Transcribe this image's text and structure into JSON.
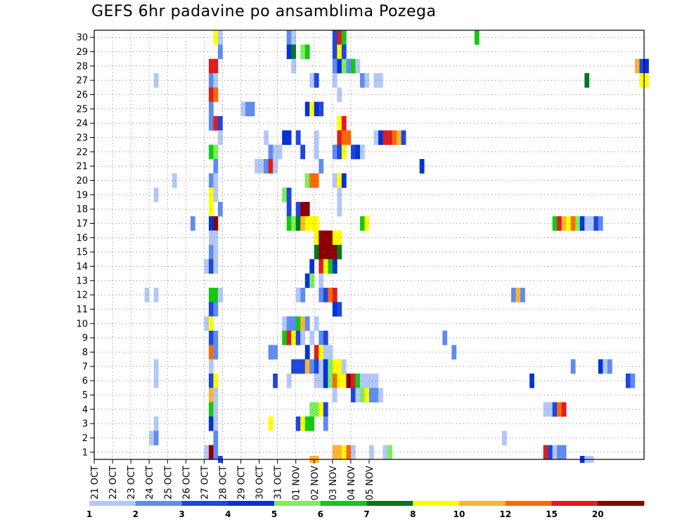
{
  "chart_data": {
    "type": "heatmap",
    "title": "GEFS 6hr padavine po ansamblima Pozega",
    "xlabel": "",
    "ylabel": "",
    "x_ticks": [
      "21 OCT",
      "22 OCT",
      "23 OCT",
      "24 OCT",
      "25 OCT",
      "26 OCT",
      "27 OCT",
      "28 OCT",
      "29 OCT",
      "30 OCT",
      "31 OCT",
      "01 NOV",
      "02 NOV",
      "03 NOV",
      "04 NOV",
      "05 NOV"
    ],
    "y_ticks": [
      "1",
      "2",
      "3",
      "4",
      "5",
      "6",
      "7",
      "8",
      "9",
      "10",
      "11",
      "12",
      "13",
      "14",
      "15",
      "16",
      "17",
      "18",
      "19",
      "20",
      "21",
      "22",
      "23",
      "24",
      "25",
      "26",
      "27",
      "28",
      "29",
      "30"
    ],
    "x_unit": "6-hour steps starting 21 OCT 00Z",
    "legend": {
      "labels": [
        "1",
        "2",
        "3",
        "4",
        "5",
        "6",
        "7",
        "8",
        "10",
        "12",
        "15",
        "20"
      ],
      "colors": [
        "#b4c8f8",
        "#5f8cf0",
        "#1e46e0",
        "#0032d8",
        "#7af05a",
        "#14c814",
        "#00781e",
        "#ffff00",
        "#ffb432",
        "#ff6a00",
        "#dc1e1e",
        "#8c0000"
      ]
    },
    "grid": true,
    "cells": [
      [
        30,
        [
          [
            26,
            8
          ],
          [
            27,
            1
          ],
          [
            42,
            2
          ],
          [
            43,
            1
          ],
          [
            52,
            3
          ],
          [
            53,
            11
          ],
          [
            54,
            6
          ],
          [
            83,
            6
          ]
        ]
      ],
      [
        29,
        [
          [
            27,
            2
          ],
          [
            42,
            4
          ],
          [
            43,
            7
          ],
          [
            45,
            5
          ],
          [
            46,
            6
          ],
          [
            52,
            3
          ],
          [
            53,
            8
          ],
          [
            54,
            3
          ]
        ]
      ],
      [
        28,
        [
          [
            25,
            11
          ],
          [
            26,
            11
          ],
          [
            43,
            1
          ],
          [
            52,
            2
          ],
          [
            53,
            4
          ],
          [
            54,
            5
          ],
          [
            55,
            2
          ],
          [
            56,
            6
          ],
          [
            57,
            1
          ],
          [
            118,
            9
          ],
          [
            119,
            3
          ],
          [
            120,
            4
          ]
        ]
      ],
      [
        27,
        [
          [
            13,
            1
          ],
          [
            25,
            2
          ],
          [
            26,
            1
          ],
          [
            47,
            1
          ],
          [
            48,
            3
          ],
          [
            52,
            1
          ],
          [
            58,
            2
          ],
          [
            59,
            1
          ],
          [
            61,
            1
          ],
          [
            62,
            1
          ],
          [
            107,
            7
          ],
          [
            119,
            8
          ],
          [
            120,
            8
          ]
        ]
      ],
      [
        26,
        [
          [
            25,
            11
          ],
          [
            26,
            10
          ],
          [
            53,
            1
          ]
        ]
      ],
      [
        25,
        [
          [
            25,
            2
          ],
          [
            32,
            1
          ],
          [
            33,
            2
          ],
          [
            34,
            2
          ],
          [
            46,
            4
          ],
          [
            47,
            8
          ],
          [
            48,
            4
          ],
          [
            49,
            3
          ]
        ]
      ],
      [
        24,
        [
          [
            25,
            2
          ],
          [
            26,
            11
          ],
          [
            27,
            3
          ],
          [
            53,
            8
          ],
          [
            54,
            11
          ]
        ]
      ],
      [
        23,
        [
          [
            27,
            1
          ],
          [
            37,
            1
          ],
          [
            41,
            4
          ],
          [
            42,
            4
          ],
          [
            44,
            3
          ],
          [
            48,
            1
          ],
          [
            53,
            11
          ],
          [
            54,
            10
          ],
          [
            55,
            10
          ],
          [
            61,
            1
          ],
          [
            62,
            4
          ],
          [
            63,
            11
          ],
          [
            64,
            11
          ],
          [
            65,
            10
          ],
          [
            66,
            9
          ],
          [
            67,
            3
          ]
        ]
      ],
      [
        22,
        [
          [
            25,
            6
          ],
          [
            26,
            5
          ],
          [
            38,
            2
          ],
          [
            39,
            1
          ],
          [
            40,
            1
          ],
          [
            45,
            3
          ],
          [
            48,
            1
          ],
          [
            52,
            2
          ],
          [
            53,
            3
          ],
          [
            54,
            8
          ],
          [
            56,
            3
          ],
          [
            57,
            4
          ],
          [
            58,
            1
          ]
        ]
      ],
      [
        21,
        [
          [
            26,
            2
          ],
          [
            35,
            1
          ],
          [
            36,
            1
          ],
          [
            37,
            2
          ],
          [
            38,
            11
          ],
          [
            39,
            1
          ],
          [
            49,
            2
          ],
          [
            71,
            4
          ]
        ]
      ],
      [
        20,
        [
          [
            17,
            1
          ],
          [
            25,
            2
          ],
          [
            26,
            1
          ],
          [
            46,
            5
          ],
          [
            47,
            10
          ],
          [
            48,
            10
          ],
          [
            52,
            1
          ],
          [
            53,
            8
          ],
          [
            54,
            4
          ]
        ]
      ],
      [
        19,
        [
          [
            13,
            1
          ],
          [
            25,
            8
          ],
          [
            26,
            1
          ],
          [
            41,
            5
          ],
          [
            42,
            3
          ],
          [
            53,
            1
          ]
        ]
      ],
      [
        18,
        [
          [
            25,
            8
          ],
          [
            27,
            2
          ],
          [
            42,
            3
          ],
          [
            44,
            3
          ],
          [
            45,
            12
          ],
          [
            46,
            12
          ],
          [
            53,
            1
          ]
        ]
      ],
      [
        17,
        [
          [
            21,
            2
          ],
          [
            25,
            4
          ],
          [
            26,
            12
          ],
          [
            42,
            6
          ],
          [
            43,
            5
          ],
          [
            44,
            7
          ],
          [
            45,
            9
          ],
          [
            46,
            8
          ],
          [
            47,
            8
          ],
          [
            48,
            8
          ],
          [
            58,
            6
          ],
          [
            59,
            8
          ],
          [
            100,
            6
          ],
          [
            101,
            11
          ],
          [
            102,
            9
          ],
          [
            103,
            8
          ],
          [
            104,
            10
          ],
          [
            105,
            5
          ],
          [
            106,
            4
          ],
          [
            107,
            1
          ],
          [
            108,
            1
          ],
          [
            109,
            3
          ],
          [
            110,
            2
          ]
        ]
      ],
      [
        16,
        [
          [
            25,
            1
          ],
          [
            26,
            1
          ],
          [
            48,
            8
          ],
          [
            49,
            12
          ],
          [
            50,
            12
          ],
          [
            51,
            12
          ],
          [
            52,
            8
          ],
          [
            53,
            8
          ]
        ]
      ],
      [
        15,
        [
          [
            25,
            2
          ],
          [
            26,
            1
          ],
          [
            48,
            7
          ],
          [
            49,
            12
          ],
          [
            50,
            12
          ],
          [
            51,
            12
          ],
          [
            52,
            12
          ],
          [
            53,
            7
          ]
        ]
      ],
      [
        14,
        [
          [
            24,
            1
          ],
          [
            25,
            3
          ],
          [
            26,
            1
          ],
          [
            47,
            4
          ],
          [
            49,
            11
          ],
          [
            50,
            8
          ],
          [
            51,
            6
          ],
          [
            52,
            4
          ]
        ]
      ],
      [
        13,
        [
          [
            46,
            4
          ],
          [
            47,
            5
          ],
          [
            49,
            1
          ]
        ]
      ],
      [
        12,
        [
          [
            11,
            1
          ],
          [
            13,
            1
          ],
          [
            25,
            6
          ],
          [
            26,
            6
          ],
          [
            27,
            1
          ],
          [
            44,
            1
          ],
          [
            45,
            2
          ],
          [
            49,
            2
          ],
          [
            50,
            3
          ],
          [
            51,
            10
          ],
          [
            52,
            11
          ],
          [
            91,
            2
          ],
          [
            92,
            9
          ],
          [
            93,
            2
          ]
        ]
      ],
      [
        11,
        [
          [
            25,
            3
          ],
          [
            26,
            2
          ],
          [
            52,
            4
          ],
          [
            53,
            3
          ]
        ]
      ],
      [
        10,
        [
          [
            24,
            1
          ],
          [
            25,
            8
          ],
          [
            41,
            1
          ],
          [
            42,
            2
          ],
          [
            43,
            2
          ],
          [
            44,
            6
          ],
          [
            45,
            9
          ],
          [
            46,
            2
          ],
          [
            48,
            1
          ]
        ]
      ],
      [
        9,
        [
          [
            25,
            3
          ],
          [
            26,
            2
          ],
          [
            41,
            6
          ],
          [
            42,
            11
          ],
          [
            43,
            8
          ],
          [
            44,
            3
          ],
          [
            45,
            1
          ],
          [
            47,
            1
          ],
          [
            49,
            2
          ],
          [
            50,
            3
          ],
          [
            76,
            2
          ]
        ]
      ],
      [
        8,
        [
          [
            25,
            10
          ],
          [
            26,
            2
          ],
          [
            38,
            2
          ],
          [
            39,
            2
          ],
          [
            46,
            4
          ],
          [
            48,
            11
          ],
          [
            49,
            8
          ],
          [
            50,
            1
          ],
          [
            51,
            1
          ],
          [
            78,
            2
          ]
        ]
      ],
      [
        7,
        [
          [
            13,
            1
          ],
          [
            25,
            1
          ],
          [
            43,
            3
          ],
          [
            44,
            3
          ],
          [
            45,
            3
          ],
          [
            46,
            9
          ],
          [
            47,
            2
          ],
          [
            48,
            3
          ],
          [
            49,
            1
          ],
          [
            50,
            4
          ],
          [
            51,
            5
          ],
          [
            52,
            8
          ],
          [
            53,
            8
          ],
          [
            54,
            1
          ],
          [
            104,
            2
          ],
          [
            110,
            4
          ],
          [
            111,
            1
          ],
          [
            112,
            2
          ]
        ]
      ],
      [
        6,
        [
          [
            13,
            1
          ],
          [
            25,
            3
          ],
          [
            26,
            8
          ],
          [
            39,
            3
          ],
          [
            42,
            1
          ],
          [
            48,
            1
          ],
          [
            49,
            1
          ],
          [
            50,
            4
          ],
          [
            51,
            5
          ],
          [
            52,
            10
          ],
          [
            53,
            8
          ],
          [
            54,
            8
          ],
          [
            55,
            12
          ],
          [
            56,
            11
          ],
          [
            57,
            6
          ],
          [
            58,
            1
          ],
          [
            59,
            1
          ],
          [
            60,
            1
          ],
          [
            61,
            1
          ],
          [
            95,
            4
          ],
          [
            116,
            3
          ],
          [
            117,
            2
          ]
        ]
      ],
      [
        5,
        [
          [
            25,
            9
          ],
          [
            26,
            1
          ],
          [
            52,
            1
          ],
          [
            56,
            3
          ],
          [
            57,
            1
          ],
          [
            58,
            5
          ],
          [
            59,
            8
          ],
          [
            60,
            2
          ],
          [
            61,
            2
          ],
          [
            62,
            1
          ]
        ]
      ],
      [
        4,
        [
          [
            25,
            6
          ],
          [
            26,
            1
          ],
          [
            47,
            5
          ],
          [
            48,
            5
          ],
          [
            49,
            8
          ],
          [
            50,
            3
          ],
          [
            98,
            1
          ],
          [
            99,
            1
          ],
          [
            100,
            3
          ],
          [
            101,
            10
          ],
          [
            102,
            11
          ]
        ]
      ],
      [
        3,
        [
          [
            13,
            1
          ],
          [
            25,
            4
          ],
          [
            26,
            1
          ],
          [
            38,
            8
          ],
          [
            44,
            3
          ],
          [
            45,
            8
          ],
          [
            46,
            6
          ],
          [
            47,
            6
          ],
          [
            50,
            2
          ]
        ]
      ],
      [
        2,
        [
          [
            12,
            1
          ],
          [
            13,
            2
          ],
          [
            26,
            2
          ],
          [
            89,
            1
          ]
        ]
      ],
      [
        1,
        [
          [
            24,
            1
          ],
          [
            25,
            12
          ],
          [
            26,
            2
          ],
          [
            52,
            9
          ],
          [
            53,
            9
          ],
          [
            54,
            8
          ],
          [
            55,
            10
          ],
          [
            56,
            1
          ],
          [
            60,
            1
          ],
          [
            63,
            1
          ],
          [
            64,
            5
          ],
          [
            98,
            11
          ],
          [
            99,
            3
          ],
          [
            100,
            1
          ],
          [
            101,
            2
          ],
          [
            102,
            2
          ]
        ]
      ],
      [
        0,
        [
          [
            27,
            3
          ],
          [
            47,
            9
          ],
          [
            48,
            9
          ],
          [
            106,
            4
          ],
          [
            107,
            1
          ],
          [
            108,
            1
          ]
        ]
      ]
    ]
  }
}
